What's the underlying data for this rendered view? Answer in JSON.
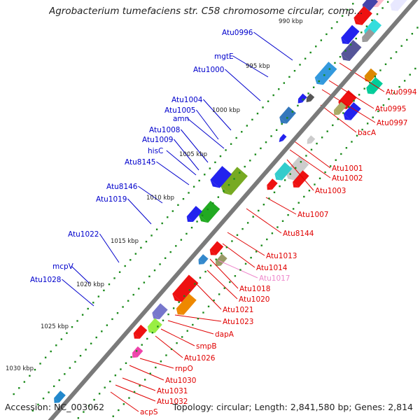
{
  "title": "Agrobacterium tumefaciens str. C58 chromosome circular, comp...",
  "accession_text": "Accession: NC_003062",
  "stats_text": "Topology: circular; Length: 2,841,580 bp; Genes: 2,814",
  "colors": {
    "backbone": "#7a7a7a",
    "forward_label": "#0000cc",
    "reverse_label": "#e00000",
    "pseudo_label": "#ee88cc",
    "tick_dot": "#1a8a1a"
  },
  "ticks": [
    "990 kbp",
    "995 kbp",
    "1000 kbp",
    "1005 kbp",
    "1010 kbp",
    "1015 kbp",
    "1020 kbp",
    "1025 kbp",
    "1030 kbp"
  ],
  "forward_labels": [
    "Atu0996",
    "mgtE",
    "Atu1000",
    "Atu1004",
    "Atu1005",
    "amn",
    "Atu1008",
    "Atu1009",
    "hisC",
    "Atu8145",
    "Atu8146",
    "Atu1019",
    "Atu1022",
    "mcpV",
    "Atu1028"
  ],
  "reverse_labels": [
    "Atu0994",
    "Atu0995",
    "Atu0997",
    "bacA",
    "Atu1001",
    "Atu1002",
    "Atu1003",
    "Atu1007",
    "Atu8144",
    "Atu1013",
    "Atu1014",
    "Atu1017",
    "Atu1018",
    "Atu1020",
    "Atu1021",
    "Atu1023",
    "dapA",
    "smpB",
    "Atu1026",
    "rnpO",
    "Atu1030",
    "Atu1031",
    "Atu1032",
    "acpS"
  ]
}
